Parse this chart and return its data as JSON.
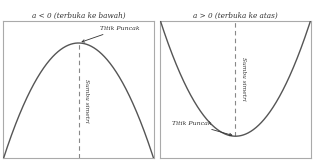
{
  "bg_color": "#ffffff",
  "border_color": "#aaaaaa",
  "curve_color": "#555555",
  "dashed_color": "#888888",
  "text_color": "#333333",
  "left_title": "a < 0 (terbuka ke bawah)",
  "right_title": "a > 0 (terbuka ke atas)",
  "label_sumbu": "Sumbu simetri",
  "label_titik_left": "Titik Puncak",
  "label_titik_right": "Titik Puncak",
  "figsize": [
    3.14,
    1.6
  ],
  "dpi": 100
}
